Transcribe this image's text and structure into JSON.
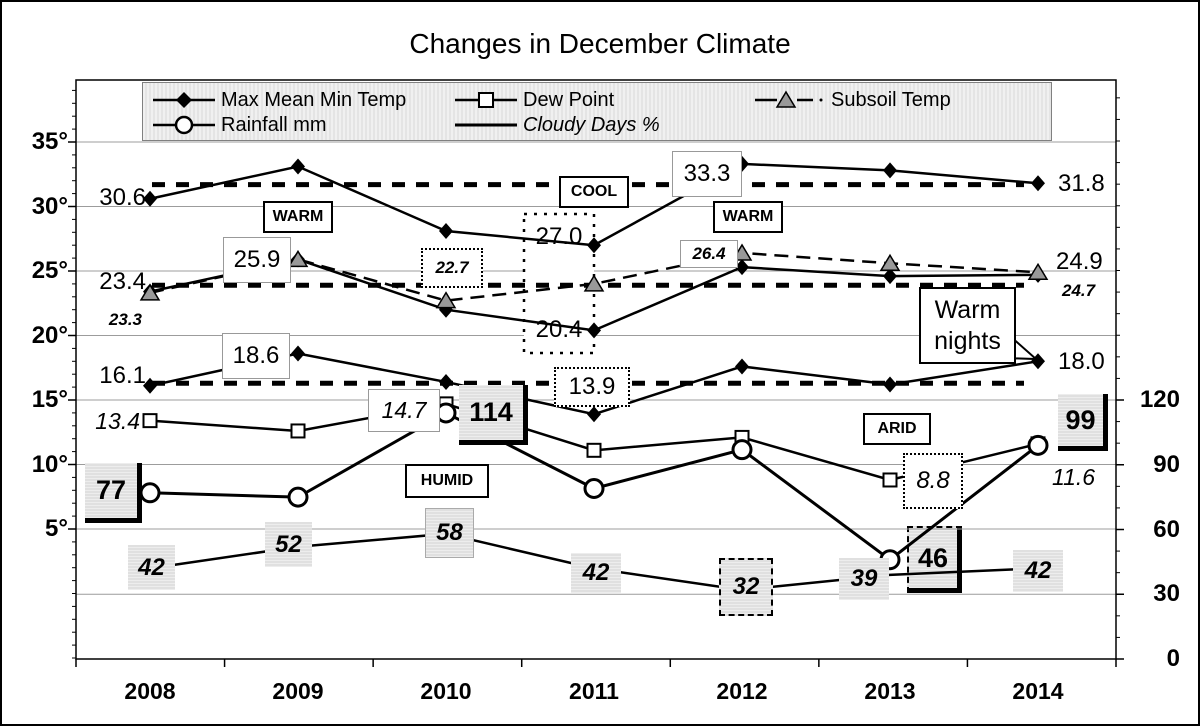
{
  "title": "Changes in December Climate",
  "legend": {
    "items": [
      {
        "id": "max-mean-min-temp",
        "label": "Max Mean Min Temp",
        "icon": "diamond-marker-icon"
      },
      {
        "id": "dew-point",
        "label": "Dew Point",
        "icon": "square-marker-icon"
      },
      {
        "id": "subsoil-temp",
        "label": "Subsoil Temp",
        "icon": "triangle-marker-icon"
      },
      {
        "id": "rainfall",
        "label": "Rainfall mm",
        "icon": "circle-marker-icon"
      },
      {
        "id": "cloudy-days",
        "label": "Cloudy Days %",
        "icon": "line-icon"
      }
    ]
  },
  "axes": {
    "left": {
      "tick_labels": [
        "35°",
        "30°",
        "25°",
        "20°",
        "15°",
        "10°",
        "5°"
      ],
      "tick_values": [
        35,
        30,
        25,
        20,
        15,
        10,
        5
      ]
    },
    "right": {
      "tick_labels": [
        "120",
        "90",
        "60",
        "30",
        "0"
      ],
      "tick_values": [
        120,
        90,
        60,
        30,
        0
      ]
    },
    "x": {
      "tick_labels": [
        "2008",
        "2009",
        "2010",
        "2011",
        "2012",
        "2013",
        "2014"
      ]
    }
  },
  "chart_data": {
    "type": "line",
    "title": "Changes in December Climate",
    "categories": [
      2008,
      2009,
      2010,
      2011,
      2012,
      2013,
      2014
    ],
    "ylim_left": [
      5,
      35
    ],
    "ylim_right": [
      0,
      120
    ],
    "grid": true,
    "legend_position": "top",
    "series": [
      {
        "name": "Max Temp",
        "axis": "left",
        "marker": "diamond",
        "line": "solid",
        "values": [
          30.6,
          33.1,
          28.1,
          27.0,
          33.3,
          32.8,
          31.8
        ]
      },
      {
        "name": "Mean Temp",
        "axis": "left",
        "marker": "diamond",
        "line": "solid",
        "values": [
          23.4,
          25.9,
          22.0,
          20.4,
          25.3,
          24.6,
          24.7
        ]
      },
      {
        "name": "Min Temp",
        "axis": "left",
        "marker": "diamond",
        "line": "solid",
        "values": [
          16.1,
          18.6,
          16.4,
          13.9,
          17.6,
          16.2,
          18.0
        ]
      },
      {
        "name": "Subsoil Temp",
        "axis": "left",
        "marker": "triangle",
        "line": "dashed",
        "values": [
          23.3,
          25.9,
          22.7,
          24.0,
          26.4,
          25.6,
          24.9
        ]
      },
      {
        "name": "Dew Point",
        "axis": "left",
        "marker": "square",
        "line": "solid",
        "values": [
          13.4,
          12.6,
          14.7,
          11.1,
          12.1,
          8.8,
          11.6
        ]
      },
      {
        "name": "Rainfall mm",
        "axis": "right",
        "marker": "circle",
        "line": "solid",
        "values": [
          77,
          75,
          114,
          79,
          97,
          46,
          99
        ]
      },
      {
        "name": "Cloudy Days %",
        "axis": "right",
        "marker": "none",
        "line": "solid",
        "values": [
          42,
          52,
          58,
          42,
          32,
          39,
          42
        ]
      }
    ],
    "reference_lines": [
      {
        "name": "max-average",
        "axis": "left",
        "value": 31.7,
        "style": "heavy-dotted"
      },
      {
        "name": "mean-average",
        "axis": "left",
        "value": 23.9,
        "style": "heavy-dotted"
      },
      {
        "name": "min-average",
        "axis": "left",
        "value": 16.3,
        "style": "heavy-dotted"
      }
    ]
  },
  "annotations": {
    "values": [
      {
        "id": "max-2008",
        "text": "30.6"
      },
      {
        "id": "max-2011",
        "text": "27.0"
      },
      {
        "id": "max-2012",
        "text": "33.3"
      },
      {
        "id": "max-2014",
        "text": "31.8"
      },
      {
        "id": "mean-2008",
        "text": "23.4"
      },
      {
        "id": "mean-2009",
        "text": "25.9"
      },
      {
        "id": "mean-2011",
        "text": "20.4"
      },
      {
        "id": "mean-2014",
        "text": "24.7"
      },
      {
        "id": "subsoil-2008",
        "text": "23.3"
      },
      {
        "id": "subsoil-2010",
        "text": "22.7"
      },
      {
        "id": "subsoil-2012",
        "text": "26.4"
      },
      {
        "id": "subsoil-2014",
        "text": "24.9"
      },
      {
        "id": "min-2008",
        "text": "16.1"
      },
      {
        "id": "min-2009",
        "text": "18.6"
      },
      {
        "id": "min-2011",
        "text": "13.9"
      },
      {
        "id": "min-2014",
        "text": "18.0"
      },
      {
        "id": "dew-2008",
        "text": "13.4"
      },
      {
        "id": "dew-2010",
        "text": "14.7"
      },
      {
        "id": "dew-2013",
        "text": "8.8"
      },
      {
        "id": "dew-2014",
        "text": "11.6"
      },
      {
        "id": "rain-2008",
        "text": "77"
      },
      {
        "id": "rain-2010",
        "text": "114"
      },
      {
        "id": "rain-2013",
        "text": "46"
      },
      {
        "id": "rain-2014",
        "text": "99"
      },
      {
        "id": "cloudy-2008",
        "text": "42"
      },
      {
        "id": "cloudy-2009",
        "text": "52"
      },
      {
        "id": "cloudy-2010",
        "text": "58"
      },
      {
        "id": "cloudy-2011",
        "text": "42"
      },
      {
        "id": "cloudy-2012",
        "text": "32"
      },
      {
        "id": "cloudy-2013",
        "text": "39"
      },
      {
        "id": "cloudy-2014",
        "text": "42"
      }
    ],
    "zones": [
      {
        "id": "warm-2009",
        "text": "WARM"
      },
      {
        "id": "cool-2011",
        "text": "COOL"
      },
      {
        "id": "warm-2012",
        "text": "WARM"
      },
      {
        "id": "humid-2010",
        "text": "HUMID"
      },
      {
        "id": "arid-2013",
        "text": "ARID"
      }
    ],
    "callout": {
      "line1": "Warm",
      "line2": "nights"
    }
  }
}
